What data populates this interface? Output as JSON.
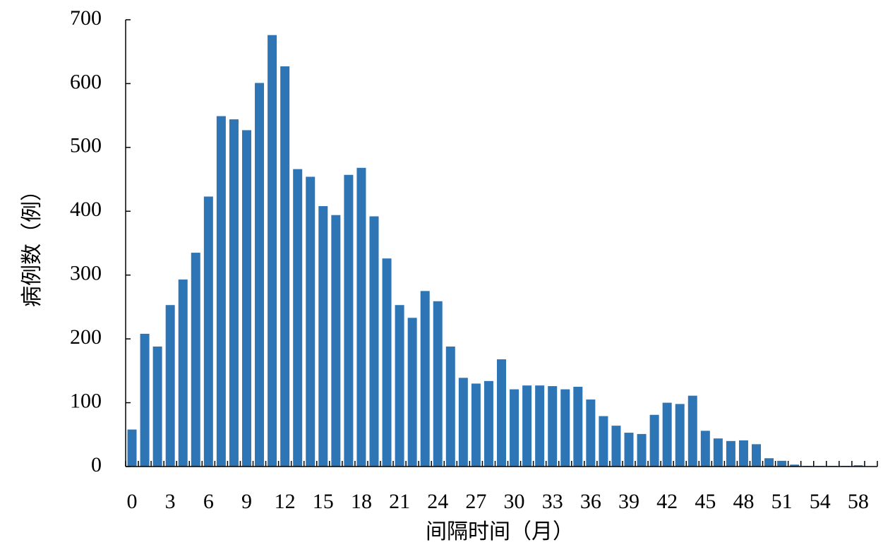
{
  "chart_data": {
    "type": "bar",
    "x_label": "间隔时间（月）",
    "y_label": "病例数（例）",
    "categories": [
      "0",
      null,
      null,
      "3",
      null,
      null,
      "6",
      null,
      null,
      "9",
      null,
      null,
      "12",
      null,
      null,
      "15",
      null,
      null,
      "18",
      null,
      null,
      "21",
      null,
      null,
      "24",
      null,
      null,
      "27",
      null,
      null,
      "30",
      null,
      null,
      "33",
      null,
      null,
      "36",
      null,
      null,
      "39",
      null,
      null,
      "42",
      null,
      null,
      "45",
      null,
      null,
      "48",
      null,
      null,
      "51",
      null,
      null,
      "54",
      null,
      null,
      "58",
      null
    ],
    "values": [
      58,
      208,
      188,
      253,
      293,
      335,
      423,
      549,
      544,
      527,
      601,
      676,
      627,
      466,
      454,
      408,
      394,
      457,
      468,
      392,
      326,
      253,
      233,
      275,
      259,
      188,
      139,
      130,
      134,
      168,
      121,
      127,
      127,
      126,
      121,
      125,
      105,
      79,
      64,
      53,
      51,
      81,
      100,
      98,
      111,
      56,
      44,
      40,
      41,
      35,
      13,
      9,
      3,
      1,
      1,
      1,
      1,
      2,
      0
    ],
    "color": "#2e75b6",
    "ylim": [
      0,
      700
    ],
    "yticks": [
      0,
      100,
      200,
      300,
      400,
      500,
      600,
      700
    ]
  }
}
